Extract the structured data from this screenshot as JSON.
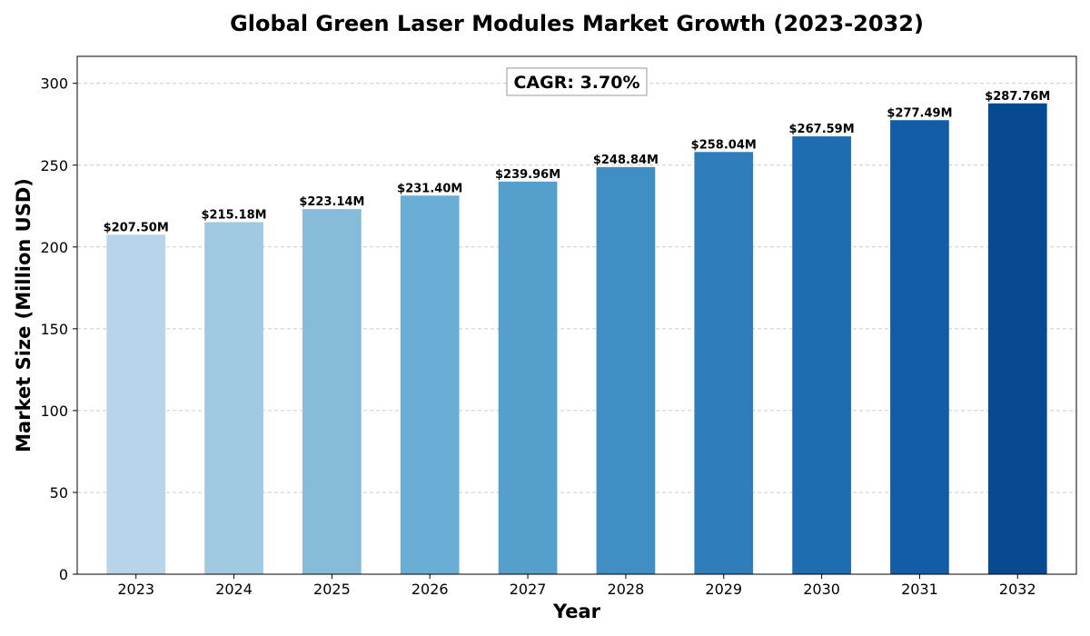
{
  "chart_data": {
    "type": "bar",
    "title": "Global Green Laser Modules Market Growth (2023-2032)",
    "xlabel": "Year",
    "ylabel": "Market Size (Million USD)",
    "categories": [
      "2023",
      "2024",
      "2025",
      "2026",
      "2027",
      "2028",
      "2029",
      "2030",
      "2031",
      "2032"
    ],
    "values": [
      207.5,
      215.18,
      223.14,
      231.4,
      239.96,
      248.84,
      258.04,
      267.59,
      277.49,
      287.76
    ],
    "value_labels": [
      "$207.50M",
      "$215.18M",
      "$223.14M",
      "$231.40M",
      "$239.96M",
      "$248.84M",
      "$258.04M",
      "$267.59M",
      "$277.49M",
      "$287.76M"
    ],
    "ylim": [
      0,
      316.5
    ],
    "yticks": [
      0,
      50,
      100,
      150,
      200,
      250,
      300
    ],
    "grid": "y-dashed",
    "colors": [
      "#b7d4ea",
      "#a0cae1",
      "#86bbda",
      "#6aaed6",
      "#559fcd",
      "#408fc4",
      "#2f7ebb",
      "#1f6db1",
      "#125da6",
      "#084a92"
    ],
    "annotation": "CAGR: 3.70%"
  }
}
